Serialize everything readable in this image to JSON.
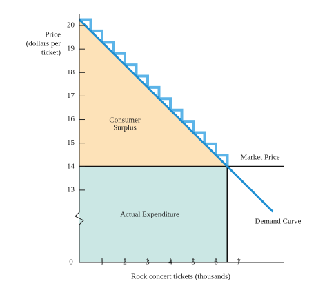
{
  "chart_data": {
    "type": "line",
    "xlabel": "Rock concert tickets (thousands)",
    "ylabel": [
      "Price",
      "(dollars per",
      "ticket)"
    ],
    "x": [
      0,
      8.5
    ],
    "series": [
      {
        "name": "Demand Curve",
        "color": "#1e8fd3",
        "values": [
          20.25,
          12.08
        ]
      }
    ],
    "xlim": [
      0,
      9
    ],
    "ylim": [
      0,
      20.5
    ],
    "axis_break": [
      0,
      12
    ],
    "xticks": [
      0,
      1,
      2,
      3,
      4,
      5,
      6,
      7
    ],
    "yticks": [
      13,
      14,
      15,
      16,
      17,
      18,
      19,
      20
    ],
    "market_price": 14,
    "quantity": 6.5,
    "step_width": 0.5,
    "step_color": "#5cb4e8",
    "surplus_color": "#fde2b8",
    "expenditure_color": "#cbe7e4",
    "annotations": {
      "surplus": [
        "Consumer",
        "Surplus"
      ],
      "expenditure": "Actual Expenditure",
      "market_price": "Market Price"
    }
  }
}
